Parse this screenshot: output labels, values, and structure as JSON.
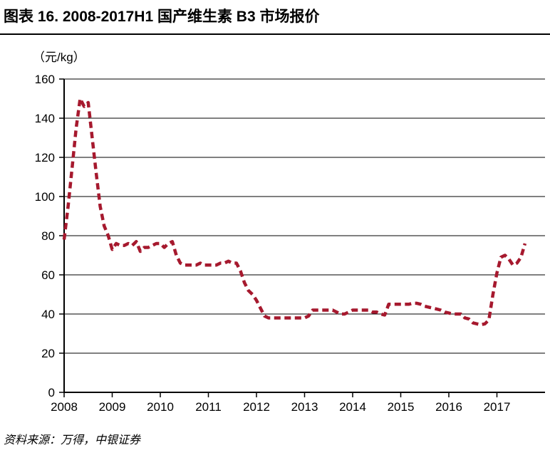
{
  "figure": {
    "title": "图表 16. 2008-2017H1 国产维生素 B3 市场报价",
    "source": "资料来源：万得，中银证券"
  },
  "chart_data": {
    "type": "line",
    "title": "2008-2017H1 国产维生素 B3 市场报价",
    "xlabel": "",
    "ylabel": "（元/kg）",
    "ylim": [
      0,
      160
    ],
    "y_tick_step": 20,
    "x_range": [
      2008,
      2018
    ],
    "x_ticks": [
      2008,
      2009,
      2010,
      2011,
      2012,
      2013,
      2014,
      2015,
      2016,
      2017
    ],
    "grid": "horizontal",
    "legend": "none",
    "series": [
      {
        "name": "国产维生素B3市场报价",
        "unit": "元/kg",
        "color": "#A6192E",
        "dashed": true,
        "start_year": 2008,
        "interval_months": 1,
        "values": [
          78,
          95,
          115,
          135,
          150,
          146,
          148,
          130,
          112,
          95,
          85,
          80,
          73,
          76,
          75,
          75,
          76,
          75,
          77,
          72,
          74,
          74,
          75,
          76,
          76,
          74,
          76,
          77,
          70,
          66,
          65,
          65,
          65,
          65,
          66,
          65,
          65,
          65,
          65,
          66,
          66,
          67,
          66,
          66,
          62,
          56,
          52,
          50,
          47,
          43,
          39,
          38,
          38,
          38,
          38,
          38,
          38,
          38,
          38,
          38,
          38,
          39,
          42,
          42,
          42,
          42,
          42,
          42,
          41,
          40,
          40,
          41,
          42,
          42,
          42,
          42,
          42,
          41,
          41,
          40,
          39.5,
          45,
          45,
          45,
          45,
          45,
          45,
          45.5,
          45.5,
          45,
          44,
          43.5,
          43,
          42.5,
          42,
          41,
          40.5,
          40,
          40,
          40,
          38,
          37.5,
          35.5,
          35,
          34.5,
          35,
          37,
          50,
          61,
          69,
          70,
          68,
          65,
          66,
          69,
          76
        ]
      }
    ]
  }
}
